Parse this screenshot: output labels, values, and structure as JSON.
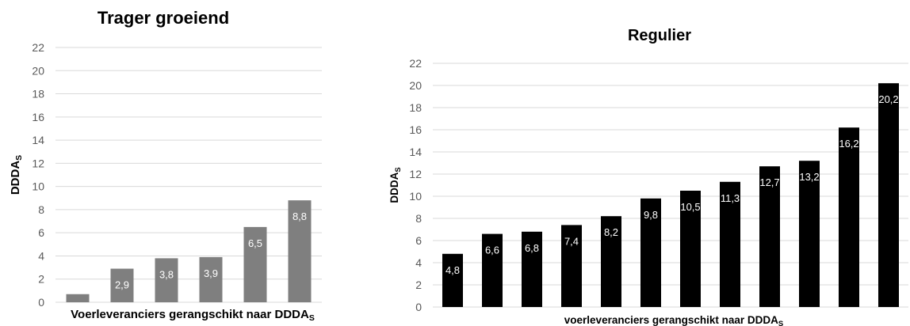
{
  "chart_data": [
    {
      "type": "bar",
      "title": "Trager groeiend",
      "ylabel": {
        "main": "DDDA",
        "sub": "S"
      },
      "xlabel": {
        "main": "Voerleveranciers gerangschikt naar DDDA",
        "sub": "S"
      },
      "ylim": [
        0,
        22
      ],
      "yticks": [
        0,
        2,
        4,
        6,
        8,
        10,
        12,
        14,
        16,
        18,
        20,
        22
      ],
      "values": [
        0.7,
        2.9,
        3.8,
        3.9,
        6.5,
        8.8
      ],
      "data_labels": [
        "",
        "2,9",
        "3,8",
        "3,9",
        "6,5",
        "8,8"
      ],
      "bar_color": "#7f7f7f",
      "grid": true
    },
    {
      "type": "bar",
      "title": "Regulier",
      "ylabel": {
        "main": "DDDA",
        "sub": "S"
      },
      "xlabel": {
        "main": "voerleveranciers gerangschikt naar DDDA",
        "sub": "S"
      },
      "ylim": [
        0,
        22
      ],
      "yticks": [
        0,
        2,
        4,
        6,
        8,
        10,
        12,
        14,
        16,
        18,
        20,
        22
      ],
      "values": [
        4.8,
        6.6,
        6.8,
        7.4,
        8.2,
        9.8,
        10.5,
        11.3,
        12.7,
        13.2,
        16.2,
        20.2
      ],
      "data_labels": [
        "4,8",
        "6,6",
        "6,8",
        "7,4",
        "8,2",
        "9,8",
        "10,5",
        "11,3",
        "12,7",
        "13,2",
        "16,2",
        "20,2"
      ],
      "bar_color": "#000000",
      "grid": true
    }
  ]
}
